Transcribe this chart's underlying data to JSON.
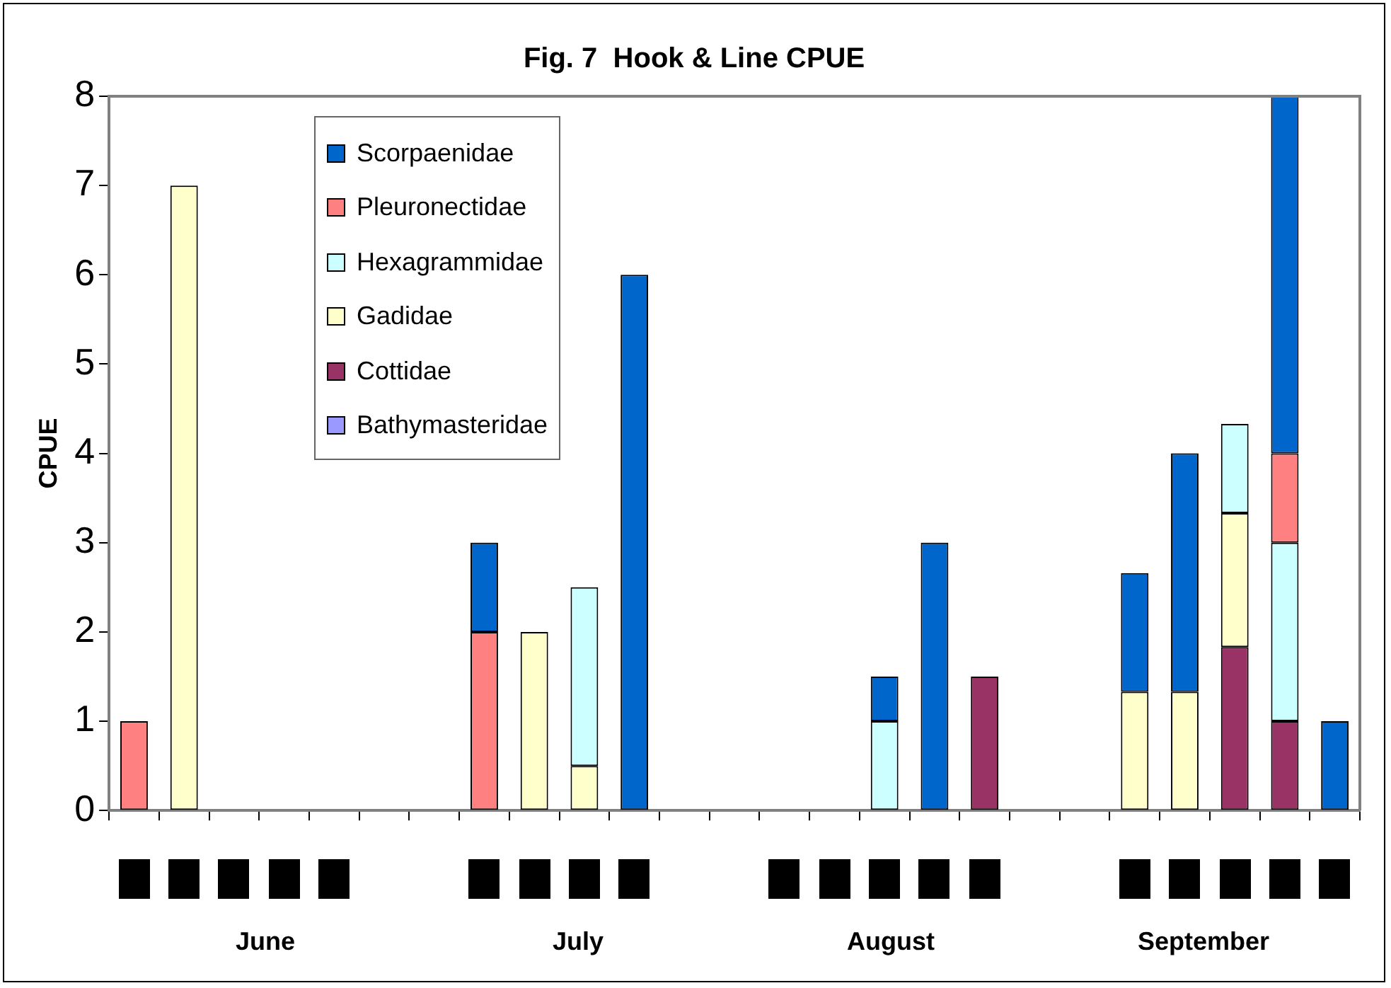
{
  "chart_data": {
    "type": "bar",
    "title": "Fig. 7  Hook & Line CPUE",
    "ylabel": "CPUE",
    "stacked": true,
    "categories": [
      null,
      null,
      null,
      null,
      null,
      null,
      null,
      null,
      null,
      null,
      null,
      null,
      null,
      null,
      null,
      null,
      null,
      null,
      null,
      null,
      null,
      null,
      null,
      null,
      null
    ],
    "series": [
      {
        "name": "Bathymasteridae",
        "color": "#9999ff",
        "values": [
          0,
          0,
          0,
          0,
          0,
          0,
          0,
          0,
          0,
          0,
          0,
          0,
          0,
          0,
          0,
          0,
          0,
          0,
          0,
          0,
          0,
          0,
          0,
          0,
          0
        ]
      },
      {
        "name": "Cottidae",
        "color": "#993366",
        "values": [
          null,
          null,
          null,
          null,
          null,
          null,
          null,
          null,
          null,
          null,
          null,
          null,
          null,
          null,
          null,
          null,
          null,
          1.5,
          null,
          null,
          null,
          null,
          1.83,
          1,
          null
        ]
      },
      {
        "name": "Gadidae",
        "color": "#ffffcc",
        "values": [
          null,
          7,
          null,
          null,
          null,
          null,
          null,
          null,
          2,
          0.5,
          null,
          null,
          null,
          null,
          null,
          null,
          null,
          null,
          null,
          null,
          1.33,
          1.33,
          1.5,
          null,
          null
        ]
      },
      {
        "name": "Hexagrammidae",
        "color": "#ccffff",
        "values": [
          null,
          null,
          null,
          null,
          null,
          null,
          null,
          null,
          null,
          2,
          null,
          null,
          null,
          null,
          null,
          1,
          null,
          null,
          null,
          null,
          null,
          null,
          1,
          2,
          null
        ]
      },
      {
        "name": "Pleuronectidae",
        "color": "#ff8080",
        "values": [
          1,
          null,
          null,
          null,
          null,
          null,
          null,
          2,
          null,
          null,
          null,
          null,
          null,
          null,
          null,
          null,
          null,
          null,
          null,
          null,
          null,
          null,
          null,
          1,
          null
        ]
      },
      {
        "name": "Scorpaenidae",
        "color": "#0066cc",
        "values": [
          null,
          null,
          null,
          null,
          null,
          null,
          null,
          1,
          null,
          null,
          6,
          null,
          null,
          null,
          null,
          0.5,
          3,
          null,
          null,
          null,
          1.33,
          2.67,
          null,
          4,
          1
        ]
      }
    ],
    "ylim": [
      0,
      8
    ],
    "yticks": [
      0,
      1,
      2,
      3,
      4,
      5,
      6,
      7,
      8
    ],
    "grid": false,
    "legend": "top left",
    "annotations": [
      "June",
      "July",
      "August",
      "September"
    ]
  }
}
